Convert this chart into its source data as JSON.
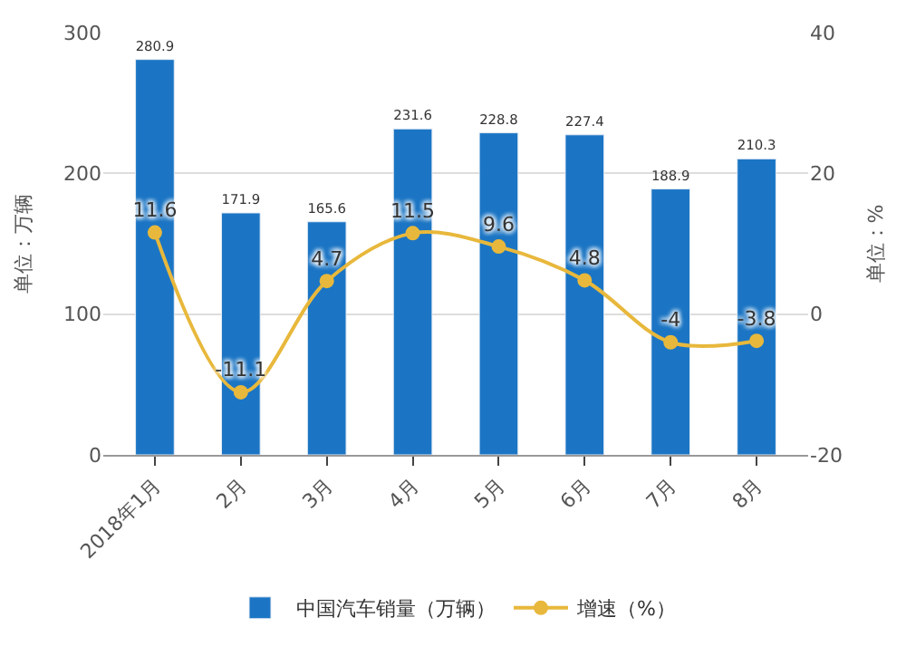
{
  "chart_data": {
    "type": "bar",
    "categories": [
      "2018年1月",
      "2月",
      "3月",
      "4月",
      "5月",
      "6月",
      "7月",
      "8月"
    ],
    "series": [
      {
        "name": "中国汽车销量（万辆）",
        "color": "#1b75c4",
        "values": [
          280.9,
          171.9,
          165.6,
          231.6,
          228.8,
          227.4,
          188.9,
          210.3
        ]
      },
      {
        "name": "增速（%）",
        "type": "line",
        "axis": "y2",
        "color": "#e8b83c",
        "marker": "circle",
        "values": [
          11.6,
          -11.1,
          4.7,
          11.5,
          9.6,
          4.8,
          -4,
          -3.8
        ]
      }
    ],
    "data_labels": true,
    "ylabel": "单位：万辆",
    "y2label": "单位：%",
    "ylim": [
      0,
      300
    ],
    "yticks": [
      0,
      100,
      200,
      300
    ],
    "y2lim": [
      -20,
      40
    ],
    "y2ticks": [
      -20,
      0,
      20,
      40
    ],
    "grid": "y",
    "legend": "bottom"
  }
}
